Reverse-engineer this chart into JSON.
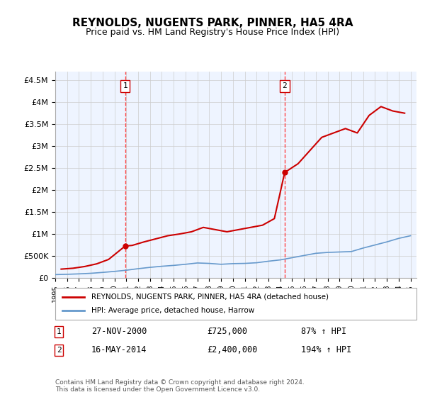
{
  "title": "REYNOLDS, NUGENTS PARK, PINNER, HA5 4RA",
  "subtitle": "Price paid vs. HM Land Registry's House Price Index (HPI)",
  "legend_line1": "REYNOLDS, NUGENTS PARK, PINNER, HA5 4RA (detached house)",
  "legend_line2": "HPI: Average price, detached house, Harrow",
  "annotation1": {
    "num": "1",
    "date": "27-NOV-2000",
    "price": "£725,000",
    "hpi": "87% ↑ HPI"
  },
  "annotation2": {
    "num": "2",
    "date": "16-MAY-2014",
    "price": "£2,400,000",
    "hpi": "194% ↑ HPI"
  },
  "footer": "Contains HM Land Registry data © Crown copyright and database right 2024.\nThis data is licensed under the Open Government Licence v3.0.",
  "sale1_year": 2000.9,
  "sale2_year": 2014.37,
  "ylim": [
    0,
    4700000
  ],
  "yticks": [
    0,
    500000,
    1000000,
    1500000,
    2000000,
    2500000,
    3000000,
    3500000,
    4000000,
    4500000
  ],
  "ytick_labels": [
    "£0",
    "£500K",
    "£1M",
    "£1.5M",
    "£2M",
    "£2.5M",
    "£3M",
    "£3.5M",
    "£4M",
    "£4.5M"
  ],
  "background_color": "#ddeeff",
  "plot_bg": "#eef4ff",
  "grid_color": "#cccccc",
  "red_line_color": "#cc0000",
  "blue_line_color": "#6699cc",
  "dashed_line_color": "#ff4444",
  "hpi_years": [
    1995,
    1996,
    1997,
    1998,
    1999,
    2000,
    2001,
    2002,
    2003,
    2004,
    2005,
    2006,
    2007,
    2008,
    2009,
    2010,
    2011,
    2012,
    2013,
    2014,
    2015,
    2016,
    2017,
    2018,
    2019,
    2020,
    2021,
    2022,
    2023,
    2024,
    2025
  ],
  "hpi_vals": [
    75000,
    82000,
    92000,
    105000,
    125000,
    148000,
    175000,
    210000,
    240000,
    265000,
    285000,
    310000,
    340000,
    330000,
    310000,
    325000,
    330000,
    345000,
    380000,
    410000,
    460000,
    510000,
    560000,
    580000,
    590000,
    600000,
    680000,
    750000,
    820000,
    900000,
    960000
  ],
  "price_years": [
    1995.5,
    1996.5,
    1997.5,
    1998.5,
    1999.5,
    2000.9,
    2001.5,
    2002.5,
    2003.5,
    2004.5,
    2005.5,
    2006.5,
    2007.5,
    2008.5,
    2009.5,
    2010.5,
    2011.5,
    2012.5,
    2013.5,
    2014.37,
    2015.5,
    2016.5,
    2017.5,
    2018.5,
    2019.5,
    2020.5,
    2021.5,
    2022.5,
    2023.5,
    2024.5
  ],
  "price_vals": [
    200000,
    220000,
    260000,
    320000,
    420000,
    725000,
    740000,
    820000,
    890000,
    960000,
    1000000,
    1050000,
    1150000,
    1100000,
    1050000,
    1100000,
    1150000,
    1200000,
    1350000,
    2400000,
    2600000,
    2900000,
    3200000,
    3300000,
    3400000,
    3300000,
    3700000,
    3900000,
    3800000,
    3750000
  ]
}
